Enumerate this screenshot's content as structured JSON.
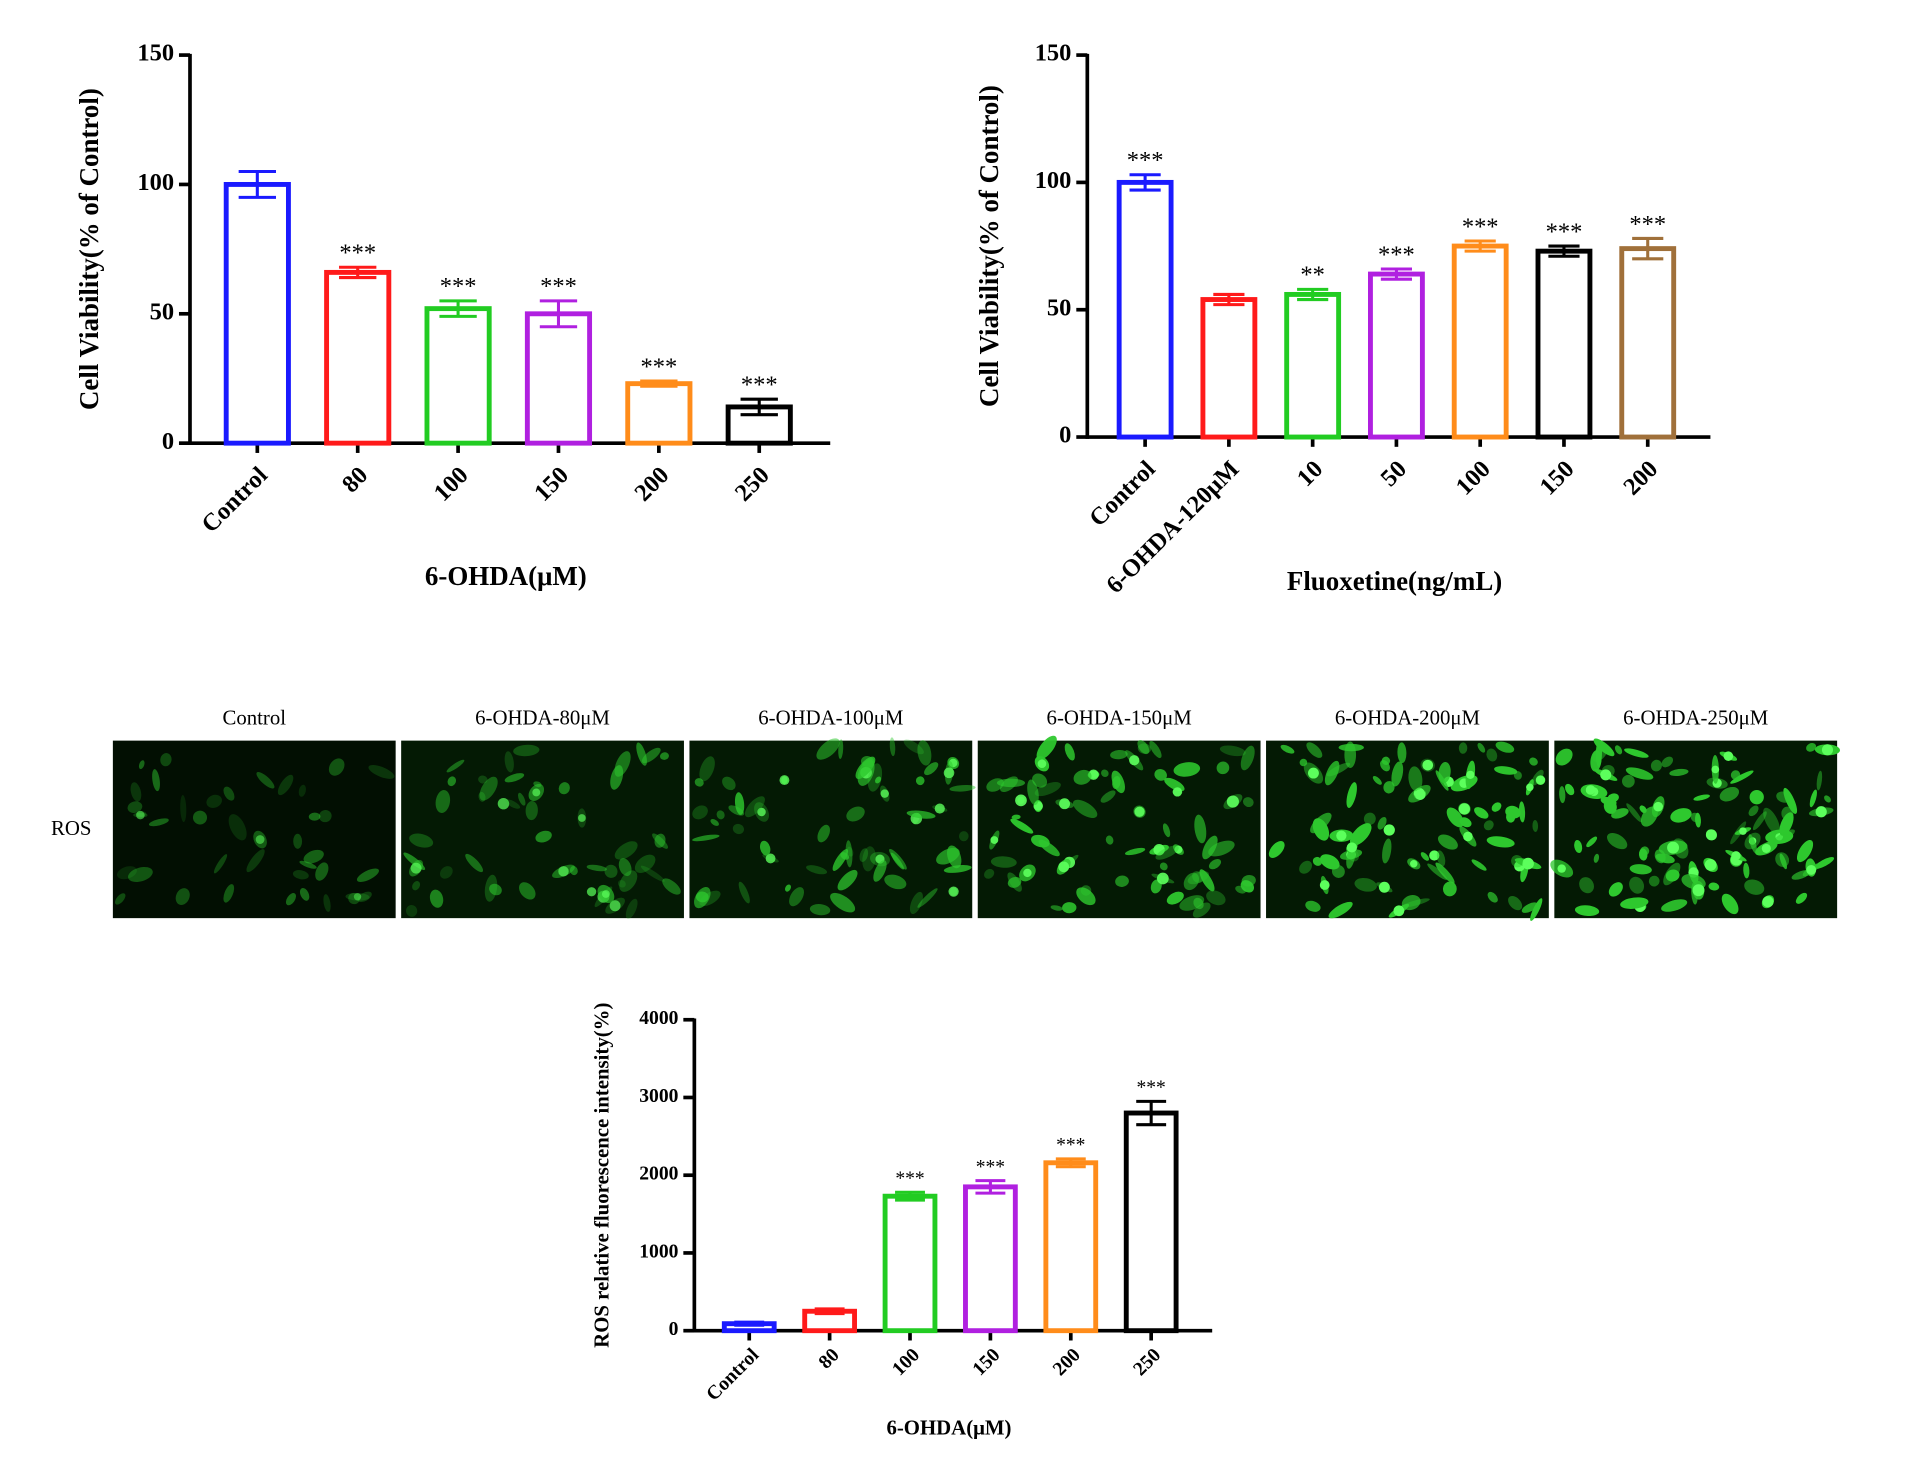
{
  "chart_data": [
    {
      "type": "bar",
      "xlabel": "6-OHDA(μM)",
      "ylabel": "Cell Viability(% of Control)",
      "categories": [
        "Control",
        "80",
        "100",
        "150",
        "200",
        "250"
      ],
      "values": [
        100,
        66,
        52,
        50,
        23,
        14
      ],
      "errors": [
        5,
        2,
        3,
        5,
        1,
        3
      ],
      "annotations": [
        null,
        "***",
        "***",
        "***",
        "***",
        "***"
      ],
      "colors": [
        "#1a1aff",
        "#ff1a1a",
        "#22cc22",
        "#b020e0",
        "#ff8c1a",
        "#000000"
      ],
      "ylim": [
        0,
        150
      ],
      "yticks": [
        0,
        50,
        100,
        150
      ]
    },
    {
      "type": "bar",
      "xlabel": "Fluoxetine(ng/mL)",
      "ylabel": "Cell Viability(% of Control)",
      "categories": [
        "Control",
        "6-OHDA-120μM",
        "10",
        "50",
        "100",
        "150",
        "200"
      ],
      "values": [
        100,
        54,
        56,
        64,
        75,
        73,
        74
      ],
      "errors": [
        3,
        2,
        2,
        2,
        2,
        2,
        4
      ],
      "annotations": [
        "***",
        null,
        "**",
        "***",
        "***",
        "***",
        "***"
      ],
      "colors": [
        "#1a1aff",
        "#ff1a1a",
        "#22cc22",
        "#b020e0",
        "#ff8c1a",
        "#000000",
        "#a0703a"
      ],
      "ylim": [
        0,
        150
      ],
      "yticks": [
        0,
        50,
        100,
        150
      ]
    },
    {
      "type": "bar",
      "xlabel": "6-OHDA(μM)",
      "ylabel": "ROS relative fluorescence intensity(%)",
      "categories": [
        "Control",
        "80",
        "100",
        "150",
        "200",
        "250"
      ],
      "values": [
        90,
        250,
        1730,
        1850,
        2160,
        2800
      ],
      "errors": [
        20,
        30,
        50,
        80,
        50,
        150
      ],
      "annotations": [
        null,
        null,
        "***",
        "***",
        "***",
        "***"
      ],
      "colors": [
        "#1a1aff",
        "#ff1a1a",
        "#22cc22",
        "#b020e0",
        "#ff8c1a",
        "#000000"
      ],
      "ylim": [
        0,
        4000
      ],
      "yticks": [
        0,
        1000,
        2000,
        3000,
        4000
      ]
    }
  ],
  "micrographs": {
    "row_label": "ROS",
    "columns": [
      "Control",
      "6-OHDA-80μM",
      "6-OHDA-100μM",
      "6-OHDA-150μM",
      "6-OHDA-200μM",
      "6-OHDA-250μM"
    ]
  }
}
